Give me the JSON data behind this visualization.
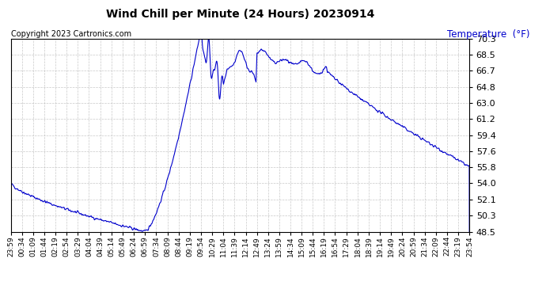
{
  "title": "Wind Chill per Minute (24 Hours) 20230914",
  "ylabel": "Temperature  (°F)",
  "copyright_text": "Copyright 2023 Cartronics.com",
  "line_color": "#0000cc",
  "ylabel_color": "#0000cc",
  "background_color": "#ffffff",
  "grid_color": "#bbbbbb",
  "ylim": [
    48.5,
    70.3
  ],
  "yticks": [
    48.5,
    50.3,
    52.1,
    54.0,
    55.8,
    57.6,
    59.4,
    61.2,
    63.0,
    64.8,
    66.7,
    68.5,
    70.3
  ],
  "x_tick_labels": [
    "23:59",
    "00:34",
    "01:09",
    "01:44",
    "02:19",
    "02:54",
    "03:29",
    "04:04",
    "04:39",
    "05:14",
    "05:49",
    "06:24",
    "06:59",
    "07:34",
    "08:09",
    "08:44",
    "09:19",
    "09:54",
    "10:29",
    "11:04",
    "11:39",
    "12:14",
    "12:49",
    "13:24",
    "13:59",
    "14:34",
    "15:09",
    "15:44",
    "16:19",
    "16:54",
    "17:29",
    "18:04",
    "18:39",
    "19:14",
    "19:49",
    "20:24",
    "20:59",
    "21:34",
    "22:09",
    "22:44",
    "23:19",
    "23:54"
  ],
  "num_points": 1440
}
